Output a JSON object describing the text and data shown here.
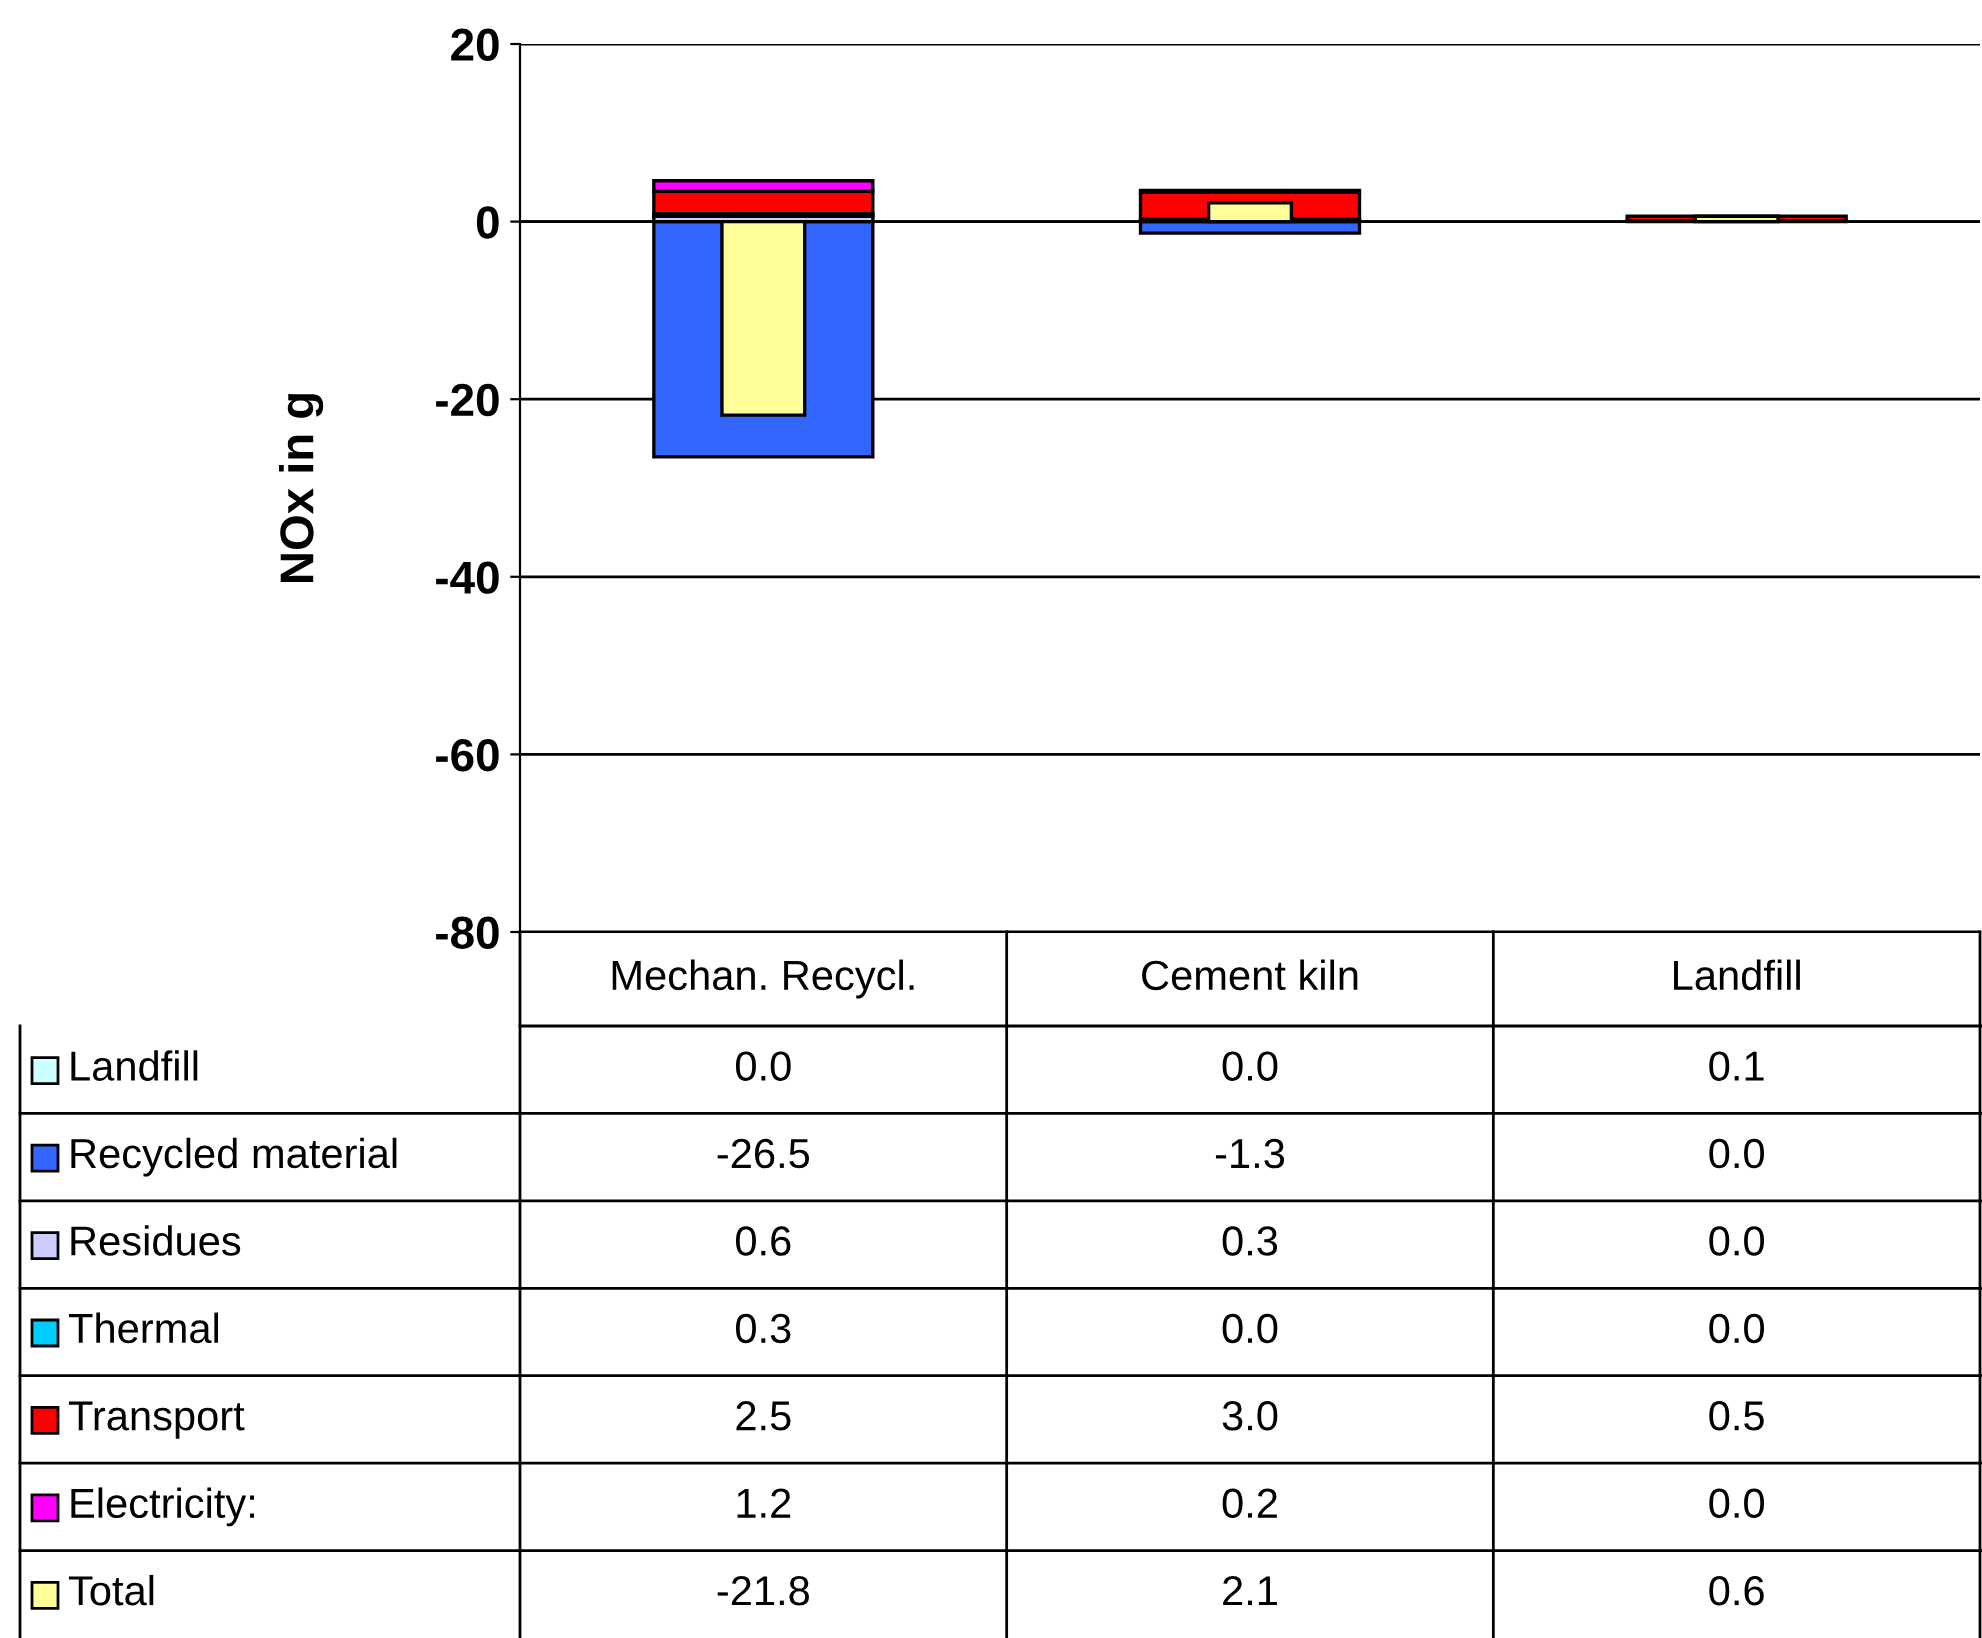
{
  "chart_data": {
    "type": "bar",
    "ylabel": "NOx in g",
    "categories": [
      "Mechan. Recycl.",
      "Cement kiln",
      "Landfill"
    ],
    "stacked": true,
    "ylim": [
      -80,
      20
    ],
    "yticks": [
      -80,
      -60,
      -40,
      -20,
      0,
      20
    ],
    "grid": "y",
    "legend": "bottom",
    "series": [
      {
        "name": "Landfill",
        "color": "#ccffff",
        "values": [
          0.0,
          0.0,
          0.1
        ],
        "value_labels": [
          "0.0",
          "0.0",
          "0.1"
        ]
      },
      {
        "name": "Recycled material",
        "color": "#3366ff",
        "values": [
          -26.5,
          -1.3,
          0.0
        ],
        "value_labels": [
          "-26.5",
          "-1.3",
          "0.0"
        ]
      },
      {
        "name": "Residues",
        "color": "#ccccff",
        "values": [
          0.6,
          0.3,
          0.0
        ],
        "value_labels": [
          "0.6",
          "0.3",
          "0.0"
        ]
      },
      {
        "name": "Thermal",
        "color": "#00ccff",
        "values": [
          0.3,
          0.0,
          0.0
        ],
        "value_labels": [
          "0.3",
          "0.0",
          "0.0"
        ]
      },
      {
        "name": "Transport",
        "color": "#ff0000",
        "values": [
          2.5,
          3.0,
          0.5
        ],
        "value_labels": [
          "2.5",
          "3.0",
          "0.5"
        ]
      },
      {
        "name": "Electricity:",
        "color": "#ff00ff",
        "values": [
          1.2,
          0.2,
          0.0
        ],
        "value_labels": [
          "1.2",
          "0.2",
          "0.0"
        ]
      },
      {
        "name": "Total",
        "color": "#ffff99",
        "values": [
          -21.8,
          2.1,
          0.6
        ],
        "value_labels": [
          "-21.8",
          "2.1",
          "0.6"
        ],
        "axis": "y2"
      }
    ]
  }
}
